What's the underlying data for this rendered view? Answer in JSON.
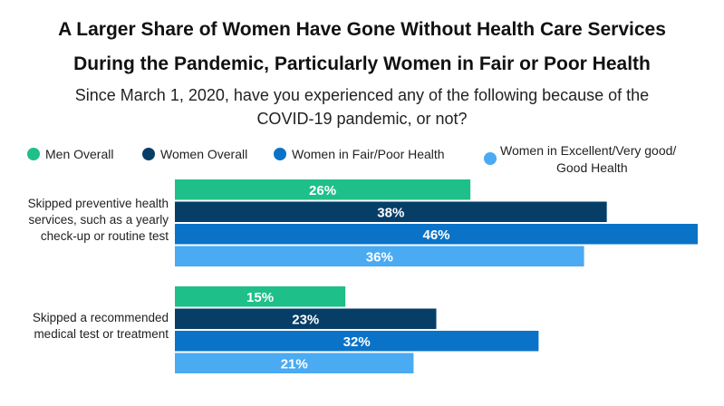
{
  "chart_data": {
    "type": "bar",
    "orientation": "horizontal",
    "title": "A Larger Share of Women Have Gone Without Health Care Services During the Pandemic, Particularly Women in Fair or Poor Health",
    "title_lines": [
      "A Larger Share of Women Have Gone Without Health Care Services",
      "During the Pandemic, Particularly Women in Fair or Poor Health"
    ],
    "subtitle": "Since March 1, 2020, have you experienced any of the following because of the COVID-19 pandemic, or not?",
    "subtitle_lines": [
      "Since March 1, 2020, have you experienced any of the following because of the",
      "COVID-19 pandemic, or not?"
    ],
    "categories": [
      "Skipped preventive health services, such as a yearly check-up or routine test",
      "Skipped a recommended medical test or treatment"
    ],
    "category_lines": [
      [
        "Skipped preventive health",
        "services, such as a yearly",
        "check-up or routine test"
      ],
      [
        "Skipped a recommended",
        "medical test or treatment"
      ]
    ],
    "series": [
      {
        "name": "Men Overall",
        "color": "#1fbf8a",
        "values": [
          26,
          15
        ]
      },
      {
        "name": "Women Overall",
        "color": "#063e68",
        "values": [
          38,
          23
        ]
      },
      {
        "name": "Women in Fair/Poor Health",
        "color": "#0a73c8",
        "values": [
          46,
          32
        ]
      },
      {
        "name": "Women in Excellent/Very good/ Good Health",
        "color": "#4aaaf2",
        "values": [
          36,
          21
        ]
      }
    ],
    "legend_lines": [
      [
        "Men Overall"
      ],
      [
        "Women Overall"
      ],
      [
        "Women in Fair/Poor Health"
      ],
      [
        "Women in Excellent/Very good/",
        "Good Health"
      ]
    ],
    "value_suffix": "%",
    "xlim": [
      0,
      46
    ],
    "grid": false,
    "legend_position": "top"
  }
}
